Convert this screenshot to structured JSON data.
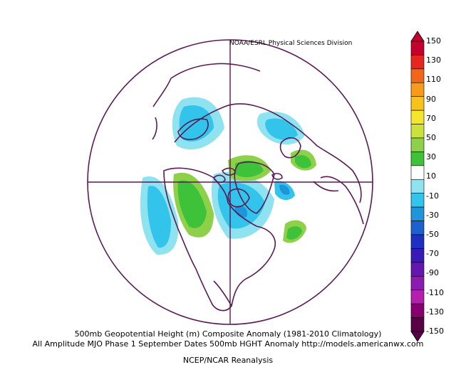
{
  "credit": "NOAA/ESRL Physical Sciences Division",
  "caption": {
    "line1": "500mb Geopotential Height (m) Composite Anomaly (1981-2010 Climatology)",
    "line2": "All Amplitude MJO Phase 1 September Dates 500mb HGHT Anomaly http://models.americanwx.com",
    "line3": "NCEP/NCAR Reanalysis"
  },
  "colorbar": {
    "ticks": [
      "150",
      "130",
      "110",
      "90",
      "70",
      "50",
      "30",
      "10",
      "-10",
      "-30",
      "-50",
      "-70",
      "-90",
      "-110",
      "-130",
      "-150"
    ],
    "colors": [
      "#c4002f",
      "#e8251f",
      "#f2661a",
      "#f89a1c",
      "#f6c21b",
      "#f4e62a",
      "#cbe23c",
      "#8fd04a",
      "#3ec23a",
      "#ffffff",
      "#8fe3f0",
      "#33c4ec",
      "#1f95da",
      "#1b61cf",
      "#1e2fc3",
      "#3a1ab6",
      "#6317b0",
      "#8c1cb1",
      "#b41fae",
      "#880070",
      "#5a0046"
    ]
  },
  "map": {
    "projection": "north polar stereographic",
    "anomaly_colors": {
      "light_blue": "#33c4ec",
      "pale_blue": "#8fe3f0",
      "dark_blue": "#1f95da",
      "green": "#3ec23a",
      "light_green": "#8fd04a"
    },
    "coastline_color": "#5a1a55"
  }
}
